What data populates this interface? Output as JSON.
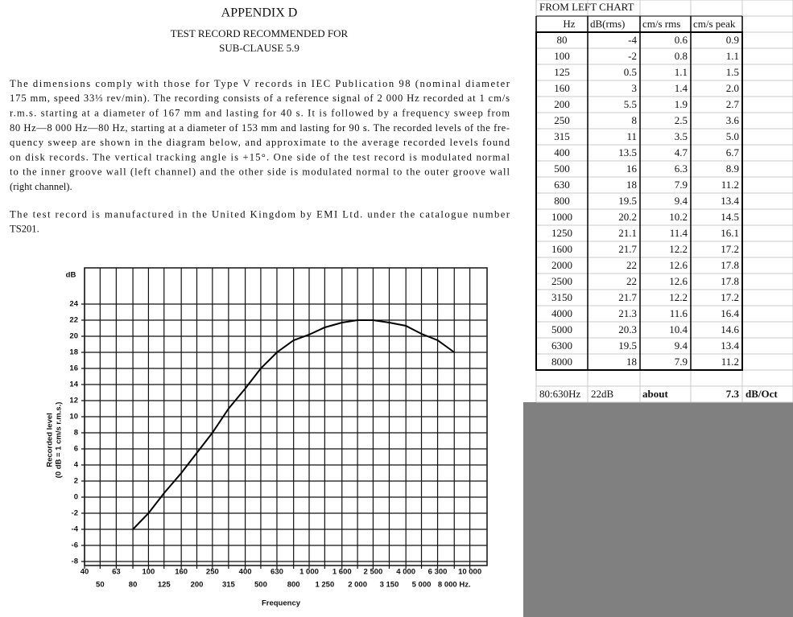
{
  "document": {
    "title": "APPENDIX D",
    "subtitle": [
      "TEST RECORD RECOMMENDED FOR",
      "SUB-CLAUSE 5.9"
    ],
    "paragraphs": [
      [
        "The dimensions comply with those for Type V records in IEC Publication 98 (nominal diameter",
        "175 mm, speed 33⅓ rev/min). The recording consists of a reference signal of 2 000 Hz recorded at 1 cm/s",
        "r.m.s. starting at a diameter of 167 mm and lasting for 40 s. It is followed by a frequency sweep from",
        "80 Hz—8 000 Hz—80 Hz, starting at a diameter of 153 mm and lasting for 90 s. The recorded levels of the fre-",
        "quency sweep are shown in the diagram below, and approximate to the average recorded levels found",
        "on disk records. The vertical tracking angle is +15°. One side of the test record is modulated normal",
        "to the inner groove wall (left channel) and the other side is modulated normal to the outer groove wall",
        "(right channel)."
      ],
      [
        "The test record is manufactured in the United Kingdom by EMI Ltd. under the catalogue number",
        "TS201."
      ]
    ]
  },
  "chart_data": {
    "type": "line",
    "y_unit": "dB",
    "xlabel": "Frequency",
    "ylabel": [
      "Recorded level",
      "(0 dB = 1 cm/s r.m.s.)"
    ],
    "x": [
      80,
      100,
      125,
      160,
      200,
      250,
      315,
      400,
      500,
      630,
      800,
      1000,
      1250,
      1600,
      2000,
      2500,
      3150,
      4000,
      5000,
      6300,
      8000
    ],
    "series": [
      {
        "color": "#000000",
        "values": [
          -4,
          -2,
          0.5,
          3,
          5.5,
          8,
          11,
          13.5,
          16,
          18,
          19.5,
          20.2,
          21.1,
          21.7,
          22,
          22,
          21.7,
          21.3,
          20.3,
          19.5,
          18
        ]
      }
    ],
    "xlog": true,
    "grid": true,
    "xlim": [
      40,
      12800
    ],
    "ylim": [
      -8.5,
      28.5
    ],
    "xticks": [
      40,
      50,
      63,
      80,
      100,
      125,
      160,
      200,
      250,
      315,
      400,
      500,
      630,
      800,
      {
        "value": 1000,
        "label": "1 000"
      },
      {
        "value": 1250,
        "label": "1 250"
      },
      {
        "value": 1600,
        "label": "1 600"
      },
      {
        "value": 2000,
        "label": "2 000"
      },
      {
        "value": 2500,
        "label": "2 500"
      },
      {
        "value": 3150,
        "label": "3 150"
      },
      {
        "value": 4000,
        "label": "4 000"
      },
      {
        "value": 5000,
        "label": "5 000"
      },
      {
        "value": 6300,
        "label": "6 300"
      },
      {
        "value": 8000,
        "label": "8 000 Hz."
      },
      {
        "value": 10000,
        "label": "10 000"
      }
    ],
    "yticks": [
      -8,
      -6,
      -4,
      -2,
      0,
      2,
      4,
      6,
      8,
      10,
      12,
      14,
      16,
      18,
      20,
      22,
      24
    ]
  },
  "sheet": {
    "title": "FROM LEFT CHART",
    "columns": [
      "Hz",
      "dB(rms)",
      "cm/s rms",
      "cm/s peak"
    ],
    "rows": [
      [
        "80",
        "-4",
        "0.6",
        "0.9"
      ],
      [
        "100",
        "-2",
        "0.8",
        "1.1"
      ],
      [
        "125",
        "0.5",
        "1.1",
        "1.5"
      ],
      [
        "160",
        "3",
        "1.4",
        "2.0"
      ],
      [
        "200",
        "5.5",
        "1.9",
        "2.7"
      ],
      [
        "250",
        "8",
        "2.5",
        "3.6"
      ],
      [
        "315",
        "11",
        "3.5",
        "5.0"
      ],
      [
        "400",
        "13.5",
        "4.7",
        "6.7"
      ],
      [
        "500",
        "16",
        "6.3",
        "8.9"
      ],
      [
        "630",
        "18",
        "7.9",
        "11.2"
      ],
      [
        "800",
        "19.5",
        "9.4",
        "13.4"
      ],
      [
        "1000",
        "20.2",
        "10.2",
        "14.5"
      ],
      [
        "1250",
        "21.1",
        "11.4",
        "16.1"
      ],
      [
        "1600",
        "21.7",
        "12.2",
        "17.2"
      ],
      [
        "2000",
        "22",
        "12.6",
        "17.8"
      ],
      [
        "2500",
        "22",
        "12.6",
        "17.8"
      ],
      [
        "3150",
        "21.7",
        "12.2",
        "17.2"
      ],
      [
        "4000",
        "21.3",
        "11.6",
        "16.4"
      ],
      [
        "5000",
        "20.3",
        "10.4",
        "14.6"
      ],
      [
        "6300",
        "19.5",
        "9.4",
        "13.4"
      ],
      [
        "8000",
        "18",
        "7.9",
        "11.2"
      ]
    ],
    "footer": [
      "80:630Hz",
      "22dB",
      "about",
      "7.3",
      "dB/Oct"
    ]
  }
}
